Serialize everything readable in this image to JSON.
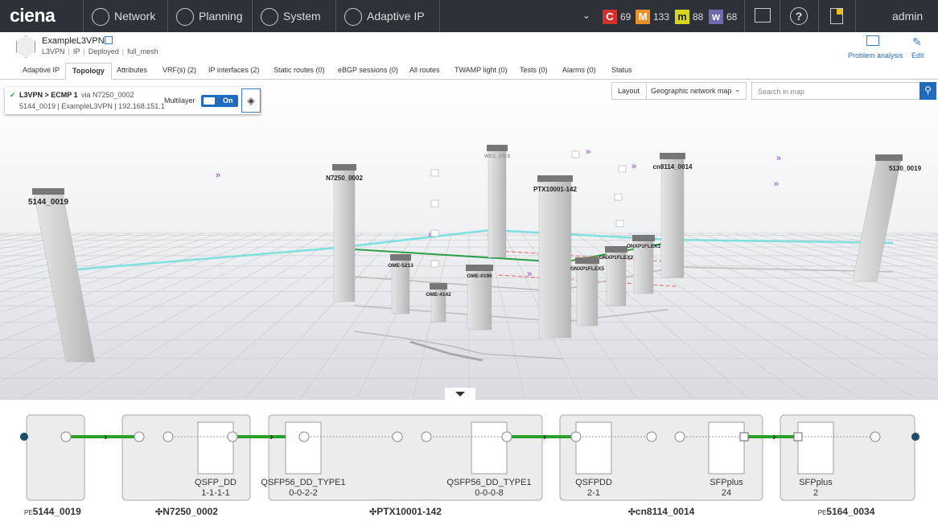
{
  "nav": {
    "brand": "ciena",
    "items": [
      "Network",
      "Planning",
      "System",
      "Adaptive IP"
    ],
    "alarms": [
      {
        "label": "C",
        "count": "69",
        "color": "#d3302f"
      },
      {
        "label": "M",
        "count": "133",
        "color": "#e8902a"
      },
      {
        "label": "m",
        "count": "88",
        "color": "#d6d61e"
      },
      {
        "label": "w",
        "count": "68",
        "color": "#6c6cae"
      }
    ],
    "user": "admin"
  },
  "service": {
    "name": "ExampleL3VPN",
    "meta": [
      "L3VPN",
      "IP",
      "Deployed",
      "full_mesh"
    ],
    "actions": [
      "Problem analysis",
      "Edit"
    ]
  },
  "tabs": {
    "items": [
      "Adaptive IP",
      "Topology",
      "Attributes",
      "VRF(s) (2)",
      "IP interfaces (2)",
      "Static routes (0)",
      "eBGP sessions (0)",
      "All routes",
      "TWAMP light (0)",
      "Tests (0)",
      "Alarms (0)",
      "Status"
    ],
    "active": "Topology"
  },
  "path_panel": {
    "breadcrumb": "L3VPN > ECMP 1",
    "via": "via N7250_0002",
    "detail": "5144_0019 | ExampleL3VPN | 192.168.151.1",
    "multilayer": "Multilayer",
    "toggle": "On"
  },
  "map_controls": {
    "layout_label": "Layout",
    "layout_value": "Geographic network map",
    "search_placeholder": "Search in map"
  },
  "map": {
    "nodes": [
      "5144_0019",
      "N7250_0002",
      "WE2_0019",
      "PTX10001-142",
      "cn8114_0014",
      "5130_0019",
      "OME-5213",
      "OME-0190",
      "OME-4142",
      "ONXP1FLEX5",
      "ONXP1FLEX2",
      "ONXP1FLEX1"
    ]
  },
  "path": {
    "nodes": [
      {
        "prefix": "PE",
        "name": "5144_0019"
      },
      {
        "name": "N7250_0002"
      },
      {
        "name": "PTX10001-142"
      },
      {
        "name": "cn8114_0014"
      },
      {
        "prefix": "PE",
        "name": "5164_0034"
      }
    ],
    "ports": [
      {
        "name": "QSFP_DD",
        "id": "1-1-1-1"
      },
      {
        "name": "QSFP56_DD_TYPE1",
        "id": "0-0-2-2"
      },
      {
        "name": "QSFP56_DD_TYPE1",
        "id": "0-0-0-8"
      },
      {
        "name": "QSFPDD",
        "id": "2-1"
      },
      {
        "name": "SFPplus",
        "id": "24"
      },
      {
        "name": "SFPplus",
        "id": "2"
      }
    ]
  }
}
